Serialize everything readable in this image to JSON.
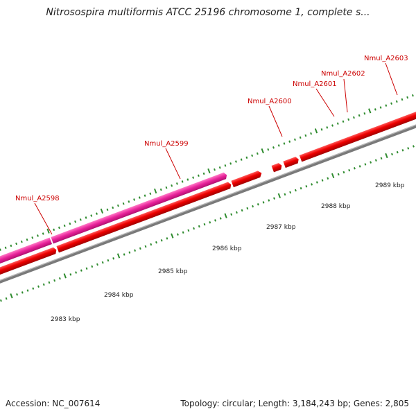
{
  "title": "Nitrosospira multiformis ATCC 25196 chromosome 1, complete s...",
  "footer": {
    "accession": "Accession: NC_007614",
    "summary": "Topology: circular; Length: 3,184,243 bp; Genes: 2,805"
  },
  "colors": {
    "forward_gene": "#ee0000",
    "highlight_gene": "#e8229a",
    "backbone": "#808080",
    "tick": "#2e8b2e",
    "gene_label": "#cc0000"
  },
  "genes": [
    {
      "id": "Nmul_A2598",
      "label": "Nmul_A2598"
    },
    {
      "id": "Nmul_A2599",
      "label": "Nmul_A2599"
    },
    {
      "id": "Nmul_A2600",
      "label": "Nmul_A2600"
    },
    {
      "id": "Nmul_A2601",
      "label": "Nmul_A2601"
    },
    {
      "id": "Nmul_A2602",
      "label": "Nmul_A2602"
    },
    {
      "id": "Nmul_A2603",
      "label": "Nmul_A2603"
    }
  ],
  "kbp_labels": [
    "2983 kbp",
    "2984 kbp",
    "2985 kbp",
    "2986 kbp",
    "2987 kbp",
    "2988 kbp",
    "2989 kbp"
  ]
}
